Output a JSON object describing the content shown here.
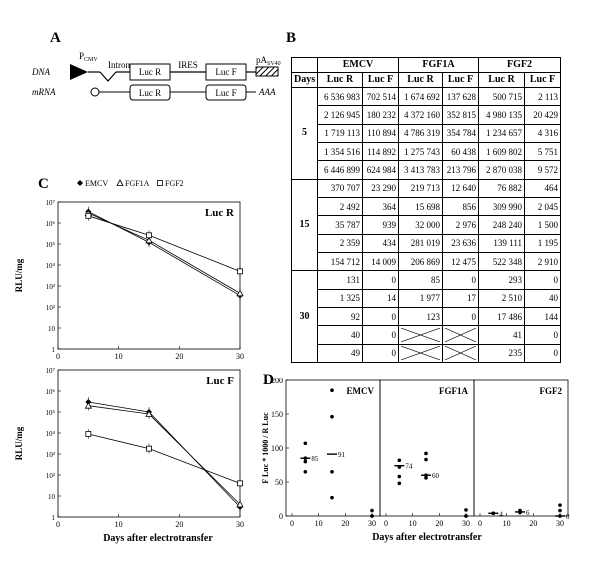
{
  "panels": {
    "a": "A",
    "b": "B",
    "c": "C",
    "d": "D"
  },
  "panelA": {
    "dna_label": "DNA",
    "mrna_label": "mRNA",
    "pcmv_main": "P",
    "pcmv_sub": "CMV",
    "intron": "Intron",
    "lucr": "Luc R",
    "ires": "IRES",
    "lucf": "Luc F",
    "pa_main": "pA",
    "pa_sub": "SV40",
    "polyA": "AAA"
  },
  "tableB": {
    "days_header": "Days",
    "groups": [
      "EMCV",
      "FGF1A",
      "FGF2"
    ],
    "subheaders": [
      "Luc R",
      "Luc F",
      "Luc R",
      "Luc F",
      "Luc R",
      "Luc F"
    ],
    "blocks": [
      {
        "day": "5",
        "rows": [
          [
            "6 536 983",
            "702 514",
            "1 674 692",
            "137 628",
            "500 715",
            "2 113"
          ],
          [
            "2 126 945",
            "180 232",
            "4 372 160",
            "352 815",
            "4 980 135",
            "20 429"
          ],
          [
            "1 719 113",
            "110 894",
            "4 786 319",
            "354 784",
            "1 234 657",
            "4 316"
          ],
          [
            "1 354 516",
            "114 892",
            "1 275 743",
            "60 438",
            "1 609 802",
            "5 751"
          ],
          [
            "6 446 899",
            "624 984",
            "3 413 783",
            "213 796",
            "2 870 038",
            "9 572"
          ]
        ]
      },
      {
        "day": "15",
        "rows": [
          [
            "370 707",
            "23 290",
            "219 713",
            "12 640",
            "76 882",
            "464"
          ],
          [
            "2 492",
            "364",
            "15 698",
            "856",
            "309 990",
            "2 045"
          ],
          [
            "35 787",
            "939",
            "32 000",
            "2 976",
            "248 240",
            "1 500"
          ],
          [
            "2 359",
            "434",
            "281 019",
            "23 636",
            "139 111",
            "1 195"
          ],
          [
            "154 712",
            "14 009",
            "206 869",
            "12 475",
            "522 348",
            "2 910"
          ]
        ]
      },
      {
        "day": "30",
        "rows": [
          [
            "131",
            "0",
            "85",
            "0",
            "293",
            "0"
          ],
          [
            "1 325",
            "14",
            "1 977",
            "17",
            "2 510",
            "40"
          ],
          [
            "92",
            "0",
            "123",
            "0",
            "17 486",
            "144"
          ],
          [
            "40",
            "0",
            "",
            "",
            "41",
            "0"
          ],
          [
            "49",
            "0",
            "",
            "",
            "235",
            "0"
          ]
        ]
      }
    ]
  },
  "chart_data": [
    {
      "type": "line",
      "title": "Luc R",
      "xlabel": "",
      "ylabel": "RLU/mg",
      "yscale": "log",
      "xlim": [
        0,
        30
      ],
      "ylim": [
        1,
        10000000
      ],
      "xticks": [
        "0",
        "10",
        "20",
        "30"
      ],
      "yticks": [
        "1",
        "10",
        "10²",
        "10³",
        "10⁴",
        "10⁵",
        "10⁶",
        "10⁷"
      ],
      "legend": [
        "EMCV",
        "FGF1A",
        "FGF2"
      ],
      "series": [
        {
          "name": "EMCV",
          "marker": "diamond",
          "x": [
            5,
            15,
            30
          ],
          "y": [
            3500000,
            120000,
            350
          ]
        },
        {
          "name": "FGF1A",
          "marker": "triangle",
          "x": [
            5,
            15,
            30
          ],
          "y": [
            3000000,
            150000,
            450
          ]
        },
        {
          "name": "FGF2",
          "marker": "square",
          "x": [
            5,
            15,
            30
          ],
          "y": [
            2200000,
            260000,
            5000
          ]
        }
      ]
    },
    {
      "type": "line",
      "title": "Luc F",
      "xlabel": "Days after electrotransfer",
      "ylabel": "RLU/mg",
      "yscale": "log",
      "xlim": [
        0,
        30
      ],
      "ylim": [
        1,
        10000000
      ],
      "xticks": [
        "0",
        "10",
        "20",
        "30"
      ],
      "yticks": [
        "1",
        "10",
        "10²",
        "10³",
        "10⁴",
        "10⁵",
        "10⁶",
        "10⁷"
      ],
      "series": [
        {
          "name": "EMCV",
          "marker": "diamond",
          "x": [
            5,
            15,
            30
          ],
          "y": [
            300000,
            100000,
            3
          ]
        },
        {
          "name": "FGF1A",
          "marker": "triangle",
          "x": [
            5,
            15,
            30
          ],
          "y": [
            200000,
            80000,
            4
          ]
        },
        {
          "name": "FGF2",
          "marker": "square",
          "x": [
            5,
            15,
            30
          ],
          "y": [
            9000,
            1800,
            40
          ]
        }
      ]
    },
    {
      "type": "scatter",
      "ylabel": "F Luc * 1000 / R Luc",
      "xlabel": "Days after electrotransfer",
      "ylim": [
        0,
        200
      ],
      "xlim": [
        0,
        30
      ],
      "yticks": [
        "0",
        "50",
        "100",
        "150",
        "200"
      ],
      "xticks": [
        "0",
        "10",
        "20",
        "30"
      ],
      "panels": [
        {
          "name": "EMCV",
          "points": [
            [
              5,
              107
            ],
            [
              5,
              85
            ],
            [
              5,
              80
            ],
            [
              5,
              65
            ],
            [
              15,
              185
            ],
            [
              15,
              146
            ],
            [
              15,
              65
            ],
            [
              15,
              27
            ],
            [
              30,
              8
            ],
            [
              30,
              0
            ],
            [
              30,
              0
            ]
          ],
          "means": [
            [
              5,
              85
            ],
            [
              15,
              91
            ]
          ],
          "mean_labels": [
            "85",
            "91"
          ]
        },
        {
          "name": "FGF1A",
          "points": [
            [
              5,
              82
            ],
            [
              5,
              72
            ],
            [
              5,
              58
            ],
            [
              5,
              48
            ],
            [
              15,
              92
            ],
            [
              15,
              83
            ],
            [
              15,
              60
            ],
            [
              15,
              56
            ],
            [
              30,
              9
            ],
            [
              30,
              0
            ],
            [
              30,
              0
            ]
          ],
          "means": [
            [
              5,
              74
            ],
            [
              15,
              60
            ]
          ],
          "mean_labels": [
            "74",
            "60"
          ]
        },
        {
          "name": "FGF2",
          "points": [
            [
              5,
              4
            ],
            [
              5,
              4
            ],
            [
              15,
              6
            ],
            [
              15,
              8
            ],
            [
              15,
              5
            ],
            [
              30,
              16
            ],
            [
              30,
              8
            ],
            [
              30,
              0
            ],
            [
              30,
              0
            ]
          ],
          "means": [
            [
              5,
              4
            ],
            [
              15,
              6
            ],
            [
              30,
              0
            ]
          ],
          "mean_labels": [
            "4",
            "6",
            "0"
          ]
        }
      ]
    }
  ]
}
